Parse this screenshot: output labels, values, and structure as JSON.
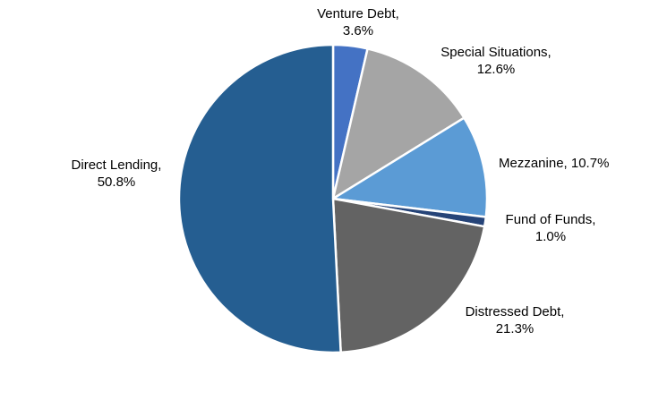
{
  "chart_data": {
    "type": "pie",
    "title": "",
    "legend": "none",
    "slices": [
      {
        "name": "Venture Debt",
        "value": 3.6,
        "label_line1": "Venture Debt,",
        "label_line2": "3.6%",
        "color": "#4472C4"
      },
      {
        "name": "Special Situations",
        "value": 12.6,
        "label_line1": "Special Situations,",
        "label_line2": "12.6%",
        "color": "#A5A5A5"
      },
      {
        "name": "Mezzanine",
        "value": 10.7,
        "label_line1": "Mezzanine,  10.7%",
        "label_line2": "",
        "color": "#5B9BD5"
      },
      {
        "name": "Fund of Funds",
        "value": 1.0,
        "label_line1": "Fund of Funds,",
        "label_line2": "1.0%",
        "color": "#264478"
      },
      {
        "name": "Distressed Debt",
        "value": 21.3,
        "label_line1": "Distressed Debt,",
        "label_line2": "21.3%",
        "color": "#636363"
      },
      {
        "name": "Direct Lending",
        "value": 50.8,
        "label_line1": "Direct Lending,",
        "label_line2": "50.8%",
        "color": "#255E91"
      }
    ]
  }
}
